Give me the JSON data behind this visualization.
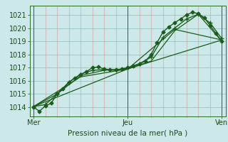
{
  "bg_color": "#cce8e8",
  "line_color": "#1a5c1a",
  "marker_color": "#1a5c1a",
  "xlabel": "Pression niveau de la mer( hPa )",
  "x_ticks_labels": [
    "Mer",
    "Jeu",
    "Ven"
  ],
  "x_ticks_pos": [
    0,
    48,
    96
  ],
  "ylim": [
    1013.3,
    1021.7
  ],
  "yticks": [
    1014,
    1015,
    1016,
    1017,
    1018,
    1019,
    1020,
    1021
  ],
  "series": [
    {
      "x": [
        0,
        3,
        6,
        9,
        12,
        15,
        18,
        21,
        24,
        27,
        30,
        33,
        36,
        39,
        42,
        45,
        48,
        51,
        54,
        57,
        60,
        63,
        66,
        69,
        72,
        75,
        78,
        81,
        84,
        87,
        90,
        93,
        96
      ],
      "y": [
        1014.0,
        1013.7,
        1014.1,
        1014.3,
        1015.0,
        1015.4,
        1015.9,
        1016.2,
        1016.5,
        1016.7,
        1017.0,
        1017.05,
        1016.9,
        1016.85,
        1016.85,
        1016.9,
        1017.0,
        1017.1,
        1017.3,
        1017.5,
        1018.0,
        1018.9,
        1019.7,
        1020.1,
        1020.4,
        1020.7,
        1021.0,
        1021.2,
        1021.1,
        1020.8,
        1020.2,
        1019.6,
        1019.0
      ],
      "marker": "D",
      "markersize": 2.5,
      "linewidth": 1.0
    },
    {
      "x": [
        0,
        6,
        12,
        18,
        24,
        30,
        36,
        42,
        48,
        54,
        60,
        66,
        72,
        78,
        84,
        90,
        96
      ],
      "y": [
        1014.05,
        1014.2,
        1015.0,
        1015.9,
        1016.5,
        1016.8,
        1016.85,
        1016.8,
        1017.0,
        1017.3,
        1017.8,
        1019.3,
        1020.0,
        1020.7,
        1021.05,
        1020.4,
        1019.2
      ],
      "marker": "+",
      "markersize": 4,
      "linewidth": 1.0
    },
    {
      "x": [
        0,
        12,
        24,
        36,
        48,
        60,
        72,
        84,
        96
      ],
      "y": [
        1014.05,
        1015.0,
        1016.4,
        1016.8,
        1016.9,
        1017.5,
        1019.8,
        1021.05,
        1019.0
      ],
      "marker": null,
      "markersize": 0,
      "linewidth": 0.9
    },
    {
      "x": [
        0,
        24,
        48,
        72,
        96
      ],
      "y": [
        1014.05,
        1016.3,
        1016.9,
        1019.9,
        1019.1
      ],
      "marker": null,
      "markersize": 0,
      "linewidth": 0.9
    },
    {
      "x": [
        0,
        48,
        96
      ],
      "y": [
        1014.05,
        1016.9,
        1019.1
      ],
      "marker": null,
      "markersize": 0,
      "linewidth": 0.9
    }
  ],
  "vlines": [
    0,
    48,
    96
  ],
  "xlim": [
    -2,
    98
  ]
}
